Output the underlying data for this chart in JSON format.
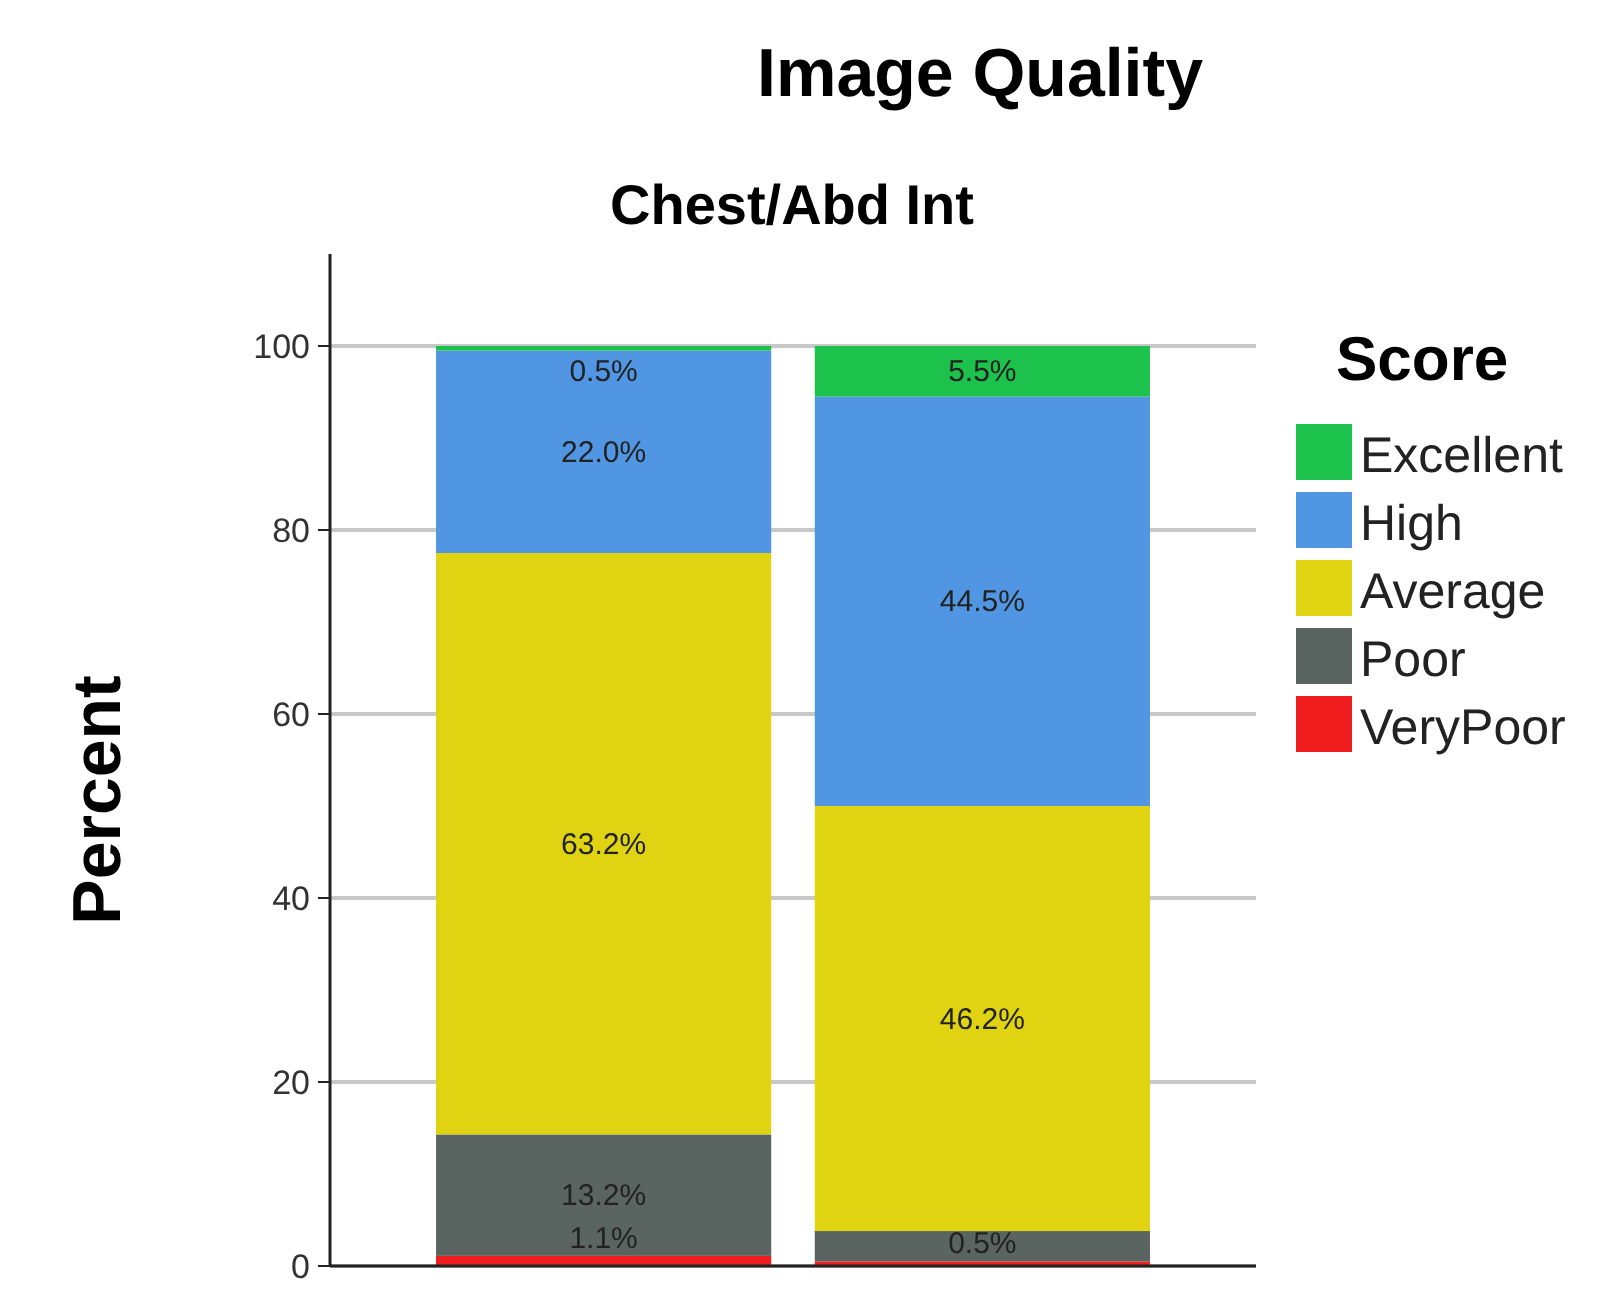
{
  "chart_data": {
    "type": "bar",
    "title": "Image Quality",
    "subtitle": "Chest/Abd Int",
    "ylabel": "Percent",
    "legend_title": "Score",
    "categories": [
      null,
      null
    ],
    "stacked": true,
    "ylim": [
      0,
      110
    ],
    "yticks": [
      0,
      20,
      40,
      60,
      80,
      100
    ],
    "grid": "y",
    "legend": "right",
    "series": [
      {
        "name": "VeryPoor",
        "color": "#f01e1e",
        "values": [
          1.1,
          0.5
        ],
        "value_labels": [
          "1.1%",
          "0.5%"
        ]
      },
      {
        "name": "Poor",
        "color": "#5a6460",
        "values": [
          13.2,
          3.3
        ],
        "value_labels": [
          "13.2%",
          null
        ]
      },
      {
        "name": "Average",
        "color": "#e0d312",
        "values": [
          63.2,
          46.2
        ],
        "value_labels": [
          "63.2%",
          "46.2%"
        ]
      },
      {
        "name": "High",
        "color": "#5096e2",
        "values": [
          22.0,
          44.5
        ],
        "value_labels": [
          "22.0%",
          "44.5%"
        ]
      },
      {
        "name": "Excellent",
        "color": "#1cc24c",
        "values": [
          0.5,
          5.5
        ],
        "value_labels": [
          "0.5%",
          "5.5%"
        ]
      }
    ]
  }
}
